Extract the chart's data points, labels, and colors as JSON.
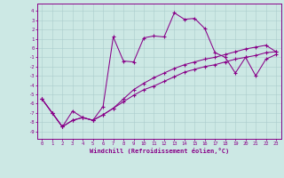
{
  "xlabel": "Windchill (Refroidissement éolien,°C)",
  "bg_color": "#cce8e4",
  "line_color": "#880088",
  "grid_color": "#aacccc",
  "x_ticks": [
    0,
    1,
    2,
    3,
    4,
    5,
    6,
    7,
    8,
    9,
    10,
    11,
    12,
    13,
    14,
    15,
    16,
    17,
    18,
    19,
    20,
    21,
    22,
    23
  ],
  "y_ticks": [
    -9,
    -8,
    -7,
    -6,
    -5,
    -4,
    -3,
    -2,
    -1,
    0,
    1,
    2,
    3,
    4
  ],
  "ylim": [
    -9.8,
    4.8
  ],
  "xlim": [
    -0.5,
    23.5
  ],
  "series1_x": [
    0,
    1,
    2,
    3,
    4,
    5,
    6,
    7,
    8,
    9,
    10,
    11,
    12,
    13,
    14,
    15,
    16,
    17,
    18,
    19,
    20,
    21,
    22,
    23
  ],
  "series1_y": [
    -5.5,
    -7.0,
    -8.5,
    -6.8,
    -7.5,
    -7.8,
    -6.3,
    1.2,
    -1.4,
    -1.5,
    1.1,
    1.3,
    1.2,
    3.8,
    3.1,
    3.2,
    2.1,
    -0.5,
    -1.0,
    -2.7,
    -1.0,
    -3.0,
    -1.2,
    -0.7
  ],
  "series2_x": [
    0,
    1,
    2,
    3,
    4,
    5,
    6,
    7,
    8,
    9,
    10,
    11,
    12,
    13,
    14,
    15,
    16,
    17,
    18,
    19,
    20,
    21,
    22,
    23
  ],
  "series2_y": [
    -5.5,
    -7.0,
    -8.5,
    -7.8,
    -7.5,
    -7.8,
    -7.2,
    -6.5,
    -5.8,
    -5.1,
    -4.5,
    -4.1,
    -3.6,
    -3.1,
    -2.6,
    -2.3,
    -2.0,
    -1.8,
    -1.5,
    -1.2,
    -1.0,
    -0.8,
    -0.5,
    -0.4
  ],
  "series3_x": [
    0,
    1,
    2,
    3,
    4,
    5,
    6,
    7,
    8,
    9,
    10,
    11,
    12,
    13,
    14,
    15,
    16,
    17,
    18,
    19,
    20,
    21,
    22,
    23
  ],
  "series3_y": [
    -5.5,
    -7.0,
    -8.5,
    -7.8,
    -7.5,
    -7.8,
    -7.2,
    -6.5,
    -5.5,
    -4.5,
    -3.8,
    -3.2,
    -2.7,
    -2.2,
    -1.8,
    -1.5,
    -1.2,
    -1.0,
    -0.7,
    -0.4,
    -0.1,
    0.1,
    0.3,
    -0.4
  ]
}
